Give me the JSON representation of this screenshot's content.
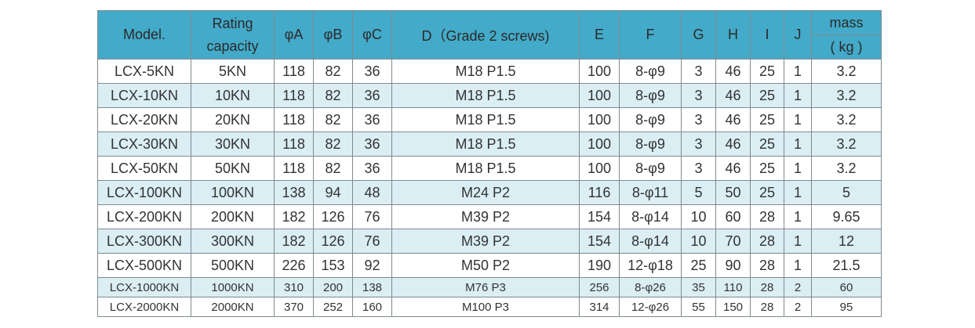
{
  "headers": {
    "model": "Model.",
    "rating_line1": "Rating",
    "rating_line2": "capacity",
    "phiA": "φA",
    "phiB": "φB",
    "phiC": "φC",
    "d": "D（Grade 2 screws)",
    "e": "E",
    "f": "F",
    "g": "G",
    "h": "H",
    "i": "I",
    "j": "J",
    "mass": "mass",
    "mass_unit": "( kg )"
  },
  "rows": [
    [
      "LCX-5KN",
      "5KN",
      "118",
      "82",
      "36",
      "M18 P1.5",
      "100",
      "8-φ9",
      "3",
      "46",
      "25",
      "1",
      "3.2"
    ],
    [
      "LCX-10KN",
      "10KN",
      "118",
      "82",
      "36",
      "M18 P1.5",
      "100",
      "8-φ9",
      "3",
      "46",
      "25",
      "1",
      "3.2"
    ],
    [
      "LCX-20KN",
      "20KN",
      "118",
      "82",
      "36",
      "M18 P1.5",
      "100",
      "8-φ9",
      "3",
      "46",
      "25",
      "1",
      "3.2"
    ],
    [
      "LCX-30KN",
      "30KN",
      "118",
      "82",
      "36",
      "M18 P1.5",
      "100",
      "8-φ9",
      "3",
      "46",
      "25",
      "1",
      "3.2"
    ],
    [
      "LCX-50KN",
      "50KN",
      "118",
      "82",
      "36",
      "M18 P1.5",
      "100",
      "8-φ9",
      "3",
      "46",
      "25",
      "1",
      "3.2"
    ],
    [
      "LCX-100KN",
      "100KN",
      "138",
      "94",
      "48",
      "M24 P2",
      "116",
      "8-φ11",
      "5",
      "50",
      "25",
      "1",
      "5"
    ],
    [
      "LCX-200KN",
      "200KN",
      "182",
      "126",
      "76",
      "M39 P2",
      "154",
      "8-φ14",
      "10",
      "60",
      "28",
      "1",
      "9.65"
    ],
    [
      "LCX-300KN",
      "300KN",
      "182",
      "126",
      "76",
      "M39 P2",
      "154",
      "8-φ14",
      "10",
      "70",
      "28",
      "1",
      "12"
    ],
    [
      "LCX-500KN",
      "500KN",
      "226",
      "153",
      "92",
      "M50 P2",
      "190",
      "12-φ18",
      "25",
      "90",
      "28",
      "1",
      "21.5"
    ],
    [
      "LCX-1000KN",
      "1000KN",
      "310",
      "200",
      "138",
      "M76 P3",
      "256",
      "8-φ26",
      "35",
      "110",
      "28",
      "2",
      "60"
    ],
    [
      "LCX-2000KN",
      "2000KN",
      "370",
      "252",
      "160",
      "M100 P3",
      "314",
      "12-φ26",
      "55",
      "150",
      "28",
      "2",
      "95"
    ]
  ],
  "colors": {
    "header_bg": "#44aac9",
    "alt_row_bg": "#daeef4",
    "border": "#7f8a8f"
  }
}
